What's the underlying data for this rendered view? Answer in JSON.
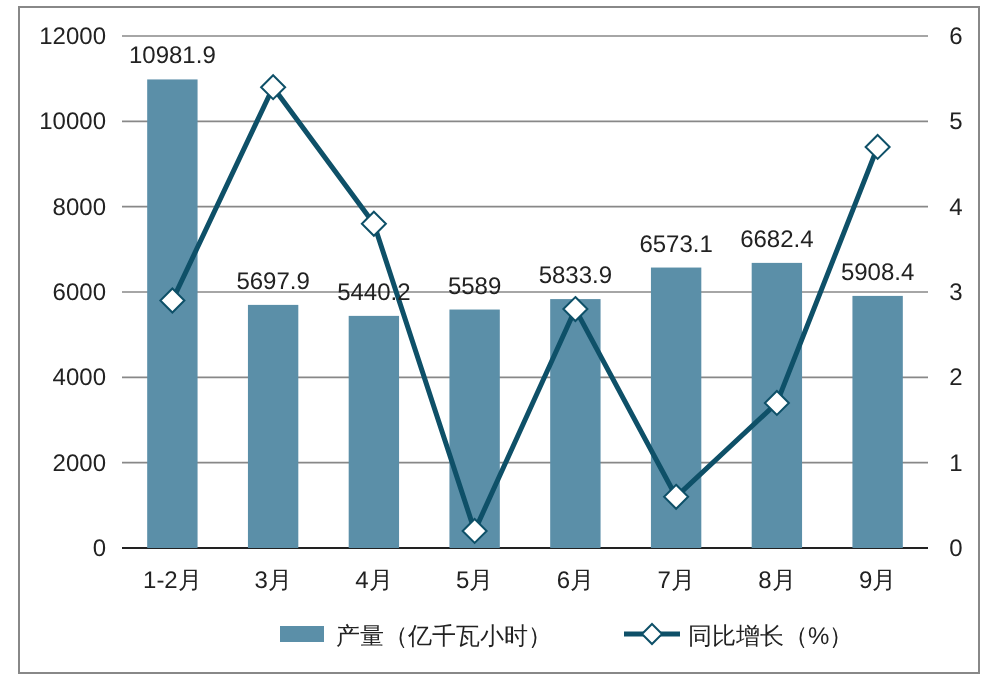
{
  "chart_data": {
    "type": "bar",
    "categories": [
      "1-2月",
      "3月",
      "4月",
      "5月",
      "6月",
      "7月",
      "8月",
      "9月"
    ],
    "series": [
      {
        "name": "产量（亿千瓦小时）",
        "color": "#5b8fa8",
        "values": [
          10981.9,
          5697.9,
          5440.2,
          5589,
          5833.9,
          6573.1,
          6682.4,
          5908.4
        ],
        "value_labels": [
          "10981.9",
          "5697.9",
          "5440.2",
          "5589",
          "5833.9",
          "6573.1",
          "6682.4",
          "5908.4"
        ]
      },
      {
        "name": "同比增长（%）",
        "type": "line",
        "axis": "y2",
        "color": "#0e5068",
        "marker": "diamond",
        "values": [
          2.9,
          5.4,
          3.8,
          0.2,
          2.8,
          0.6,
          1.7,
          4.7
        ]
      }
    ],
    "ylim": [
      0,
      12000
    ],
    "yticks": [
      0,
      2000,
      4000,
      6000,
      8000,
      10000,
      12000
    ],
    "y2lim": [
      0,
      6
    ],
    "y2ticks": [
      0,
      1,
      2,
      3,
      4,
      5,
      6
    ],
    "grid": "y",
    "legend": "bottom"
  }
}
